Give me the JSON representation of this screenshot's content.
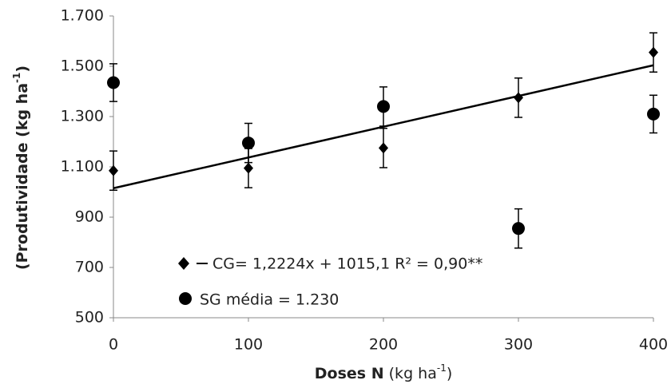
{
  "chart_data": {
    "type": "scatter",
    "x": [
      0,
      100,
      200,
      300,
      400
    ],
    "series": [
      {
        "name": "CG= 1,2224x + 1015,1 R² = 0,90**",
        "marker": "diamond",
        "color": "#000000",
        "values": [
          1085,
          1095,
          1175,
          1375,
          1555
        ],
        "errors": [
          78,
          78,
          78,
          78,
          78
        ]
      },
      {
        "name": "SG média = 1.230",
        "marker": "circle",
        "color": "#000000",
        "values": [
          1435,
          1195,
          1340,
          855,
          1310
        ],
        "errors": [
          75,
          78,
          78,
          78,
          75
        ]
      }
    ],
    "trendline": {
      "series": 0,
      "slope": 1.2224,
      "intercept": 1015.1
    },
    "x_label": [
      "Doses N",
      " (kg ha",
      "-1",
      ")"
    ],
    "y_label": [
      "(Produtividade (kg ha",
      "-1",
      ")"
    ],
    "xlim": [
      0,
      400
    ],
    "xticks": [
      0,
      100,
      200,
      300,
      400
    ],
    "ylim": [
      500,
      1700
    ],
    "yticks": [
      500,
      700,
      900,
      {
        "value": 1100,
        "label": "1.100"
      },
      {
        "value": 1300,
        "label": "1.300"
      },
      {
        "value": 1500,
        "label": "1.500"
      },
      {
        "value": 1700,
        "label": "1.700"
      }
    ]
  }
}
